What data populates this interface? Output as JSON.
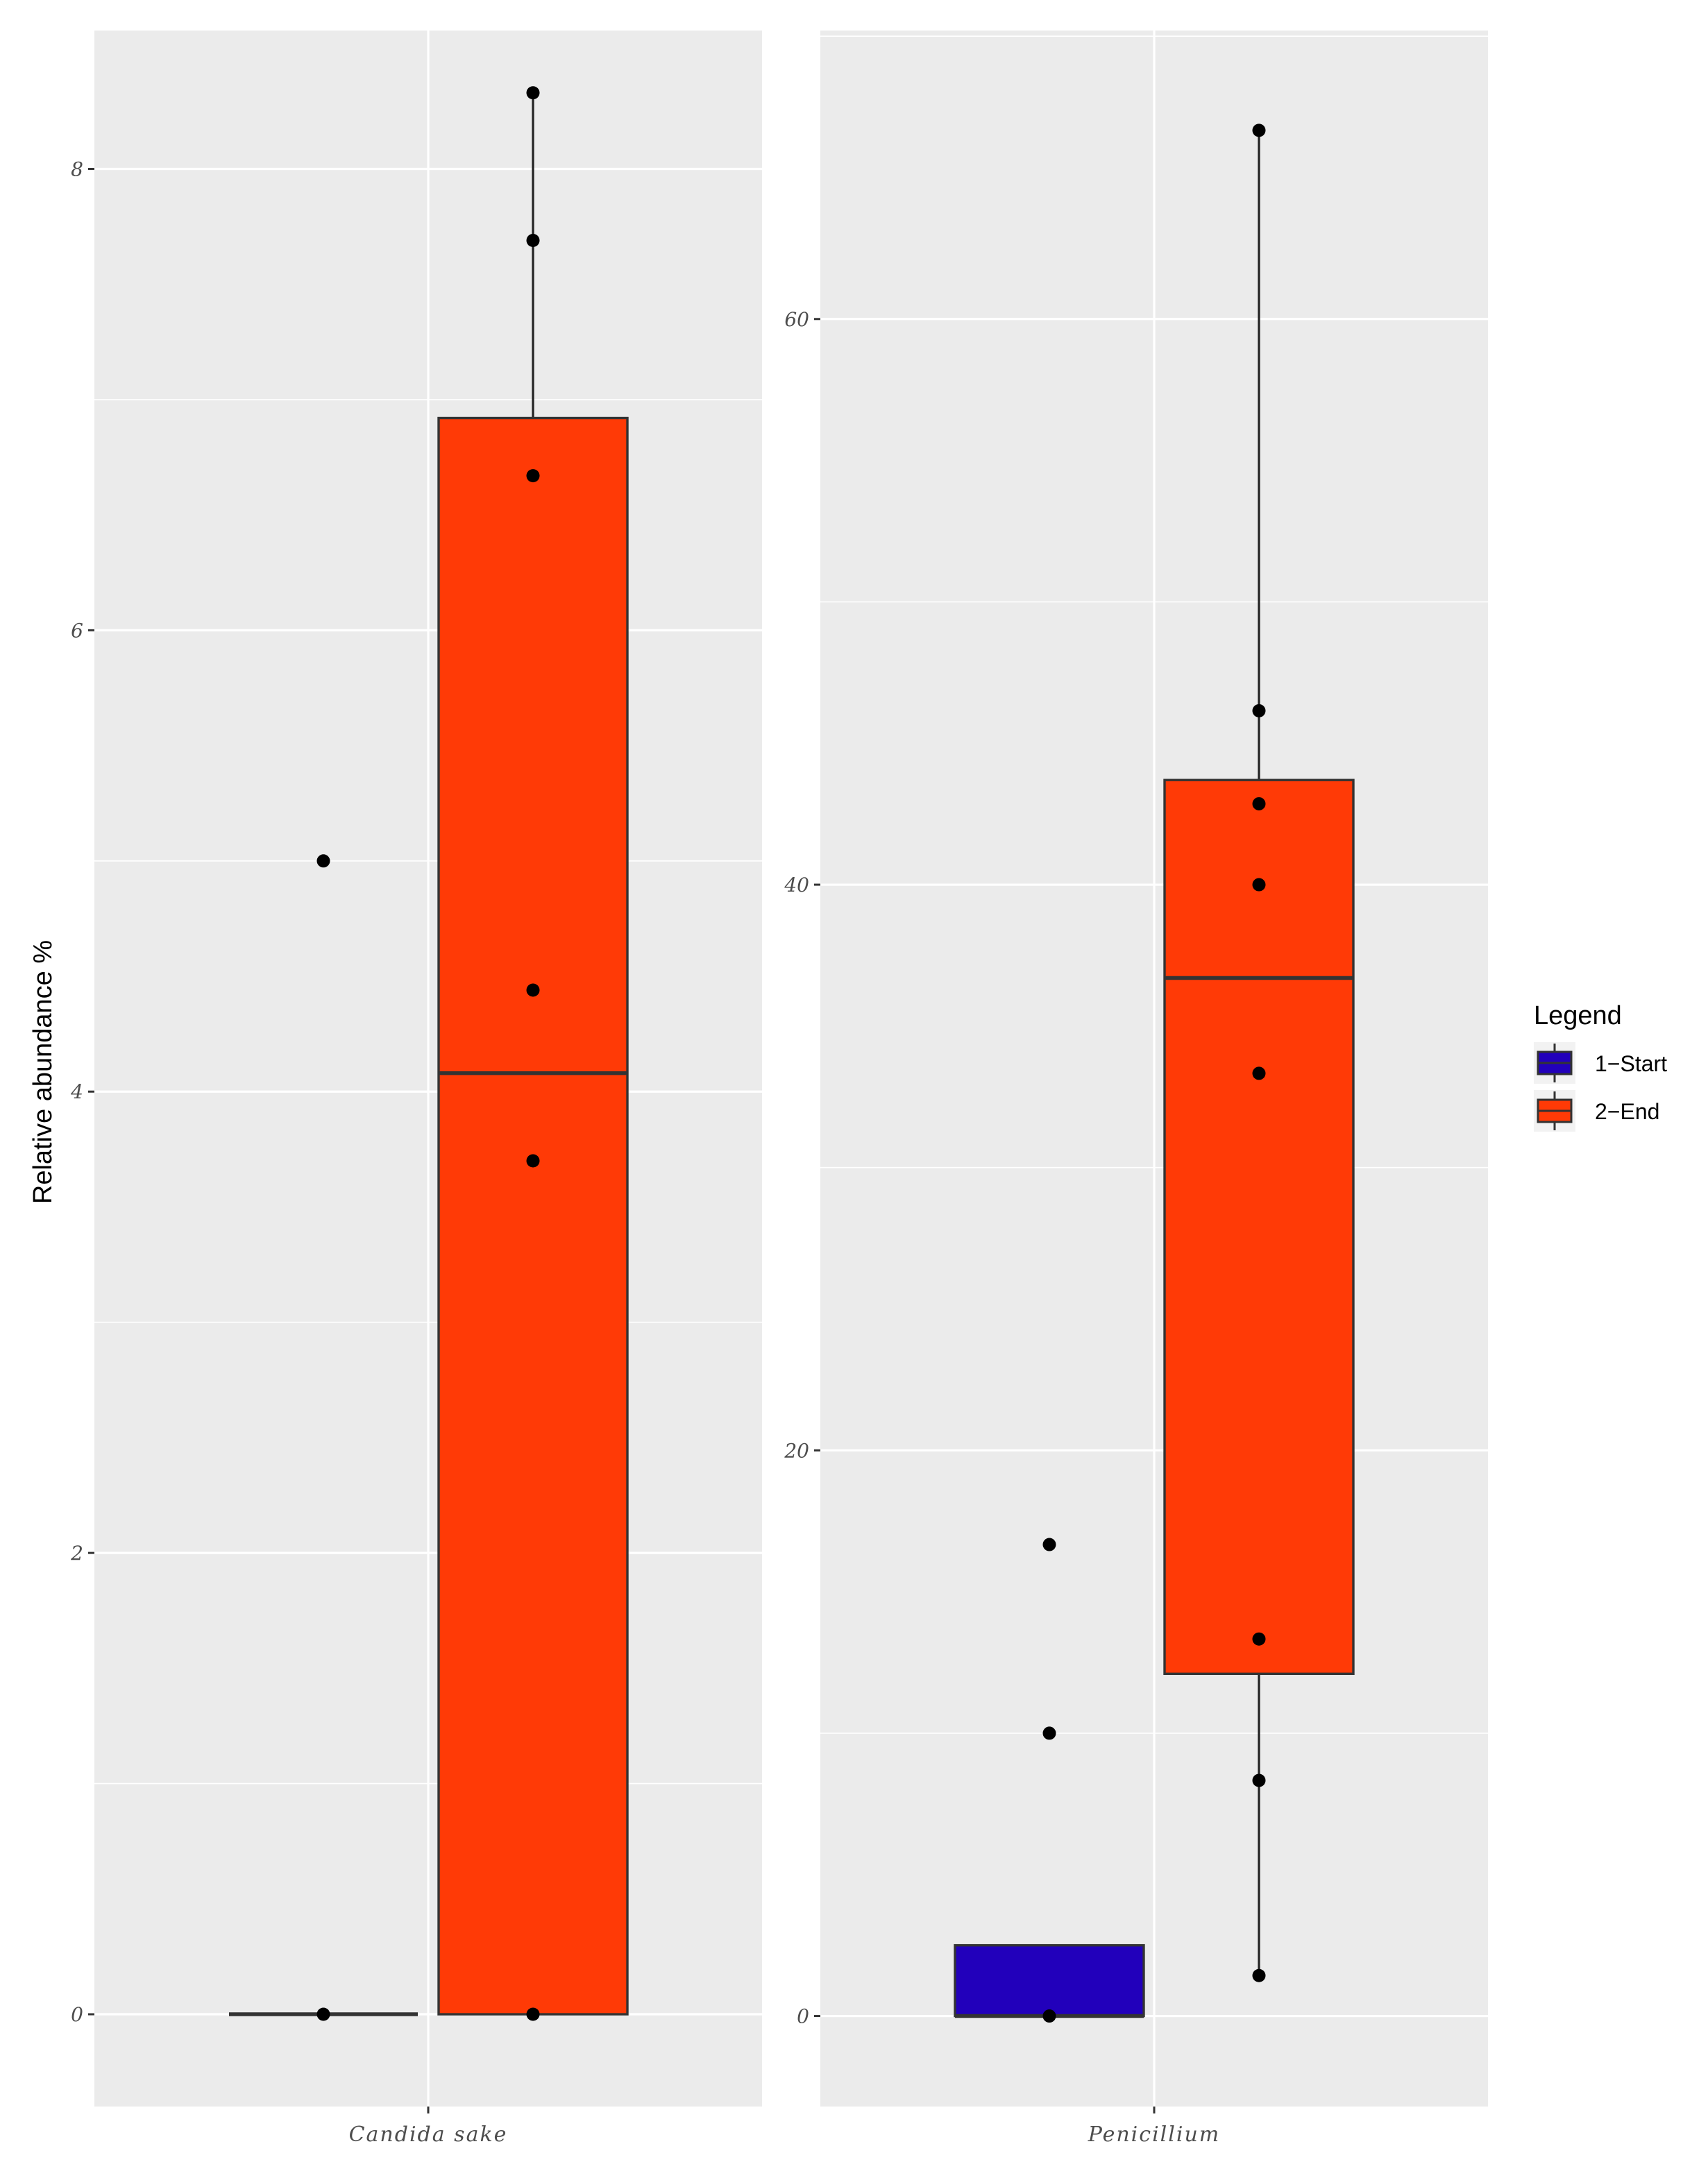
{
  "chart_data": {
    "type": "boxplot",
    "ylabel": "Relative abundance %",
    "legend": {
      "title": "Legend",
      "placement": "right",
      "entries": [
        {
          "label": "1−Start",
          "color": "#2200bb"
        },
        {
          "label": "2−End",
          "color": "#ff3a06"
        }
      ]
    },
    "panels": [
      {
        "category": "Candida sake",
        "ylim": [
          -0.4,
          8.6
        ],
        "yticks": [
          0,
          2,
          4,
          6,
          8
        ],
        "ytick_labels": [
          "0",
          "2",
          "4",
          "6",
          "8"
        ],
        "series": [
          {
            "name": "1−Start",
            "color": "#2200bb",
            "box": {
              "lower": 0,
              "q1": 0,
              "median": 0,
              "q3": 0,
              "upper": 0
            },
            "points": [
              0,
              5.0
            ]
          },
          {
            "name": "2−End",
            "color": "#ff3a06",
            "box": {
              "lower": 0,
              "q1": 0,
              "median": 4.08,
              "q3": 6.92,
              "upper": 8.33
            },
            "points": [
              0,
              3.7,
              4.44,
              6.67,
              7.69,
              8.33
            ]
          }
        ]
      },
      {
        "category": "Penicillium",
        "ylim": [
          -3.2,
          70.2
        ],
        "yticks": [
          0,
          20,
          40,
          60
        ],
        "ytick_labels": [
          "0",
          "20",
          "40",
          "60"
        ],
        "series": [
          {
            "name": "1−Start",
            "color": "#2200bb",
            "box": {
              "lower": 0,
              "q1": 0,
              "median": 0,
              "q3": 2.5,
              "upper": 2.5
            },
            "points": [
              0,
              10.0,
              16.67
            ]
          },
          {
            "name": "2−End",
            "color": "#ff3a06",
            "box": {
              "lower": 1.43,
              "q1": 12.1,
              "median": 36.7,
              "q3": 43.7,
              "upper": 66.67
            },
            "points": [
              1.43,
              8.33,
              13.33,
              33.33,
              40.0,
              42.86,
              46.15,
              66.67
            ]
          }
        ]
      }
    ]
  }
}
